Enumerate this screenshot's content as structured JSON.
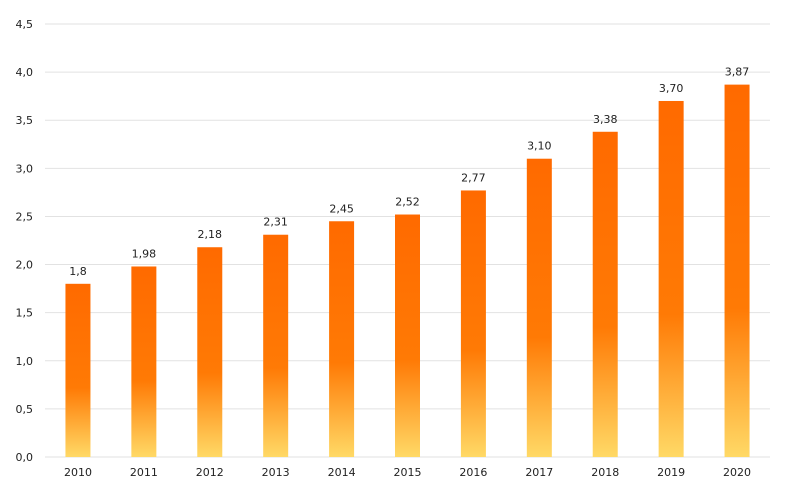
{
  "chart_data": {
    "type": "bar",
    "categories": [
      "2010",
      "2011",
      "2012",
      "2013",
      "2014",
      "2015",
      "2016",
      "2017",
      "2018",
      "2019",
      "2020"
    ],
    "values": [
      1.8,
      1.98,
      2.18,
      2.31,
      2.45,
      2.52,
      2.77,
      3.1,
      3.38,
      3.7,
      3.87
    ],
    "data_labels": [
      "1,8",
      "1,98",
      "2,18",
      "2,31",
      "2,45",
      "2,52",
      "2,77",
      "3,10",
      "3,38",
      "3,70",
      "3,87"
    ],
    "y_ticks": [
      0,
      0.5,
      1.0,
      1.5,
      2.0,
      2.5,
      3.0,
      3.5,
      4.0,
      4.5
    ],
    "y_tick_labels": [
      "0,0",
      "0,5",
      "1,0",
      "1,5",
      "2,0",
      "2,5",
      "3,0",
      "3,5",
      "4,0",
      "4,5"
    ],
    "ylim": [
      0,
      4.5
    ],
    "grid": true,
    "legend": "none",
    "colors": {
      "bar_top": "#ff6a00",
      "bar_mid": "#ff7a05",
      "bar_bottom": "#ffd966",
      "grid": "#e2e2e2",
      "text": "#222222"
    }
  }
}
